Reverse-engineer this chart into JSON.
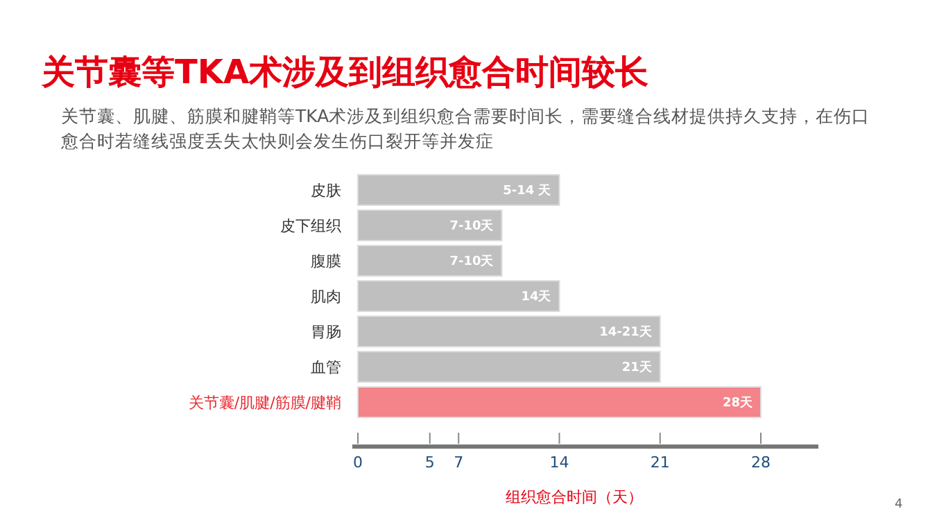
{
  "chart_data": {
    "type": "bar",
    "orientation": "horizontal",
    "title": "关节囊等TKA术涉及到组织愈合时间较长",
    "subtitle": "关节囊、肌腱、筋膜和腱鞘等TKA术涉及到组织愈合需要时间长，需要缝合线材提供持久支持，在伤口愈合时若缝线强度丢失太快则会发生伤口裂开等并发症",
    "categories": [
      "皮肤",
      "皮下组织",
      "腹膜",
      "肌肉",
      "胃肠",
      "血管",
      "关节囊/肌腱/筋膜/腱鞘"
    ],
    "values": [
      14,
      10,
      10,
      14,
      21,
      21,
      28
    ],
    "value_labels": [
      "5-14 天",
      "7-10天",
      "7-10天",
      "14天",
      "14-21天",
      "21天",
      "28天"
    ],
    "colors": [
      "#bfbfbf",
      "#bfbfbf",
      "#bfbfbf",
      "#bfbfbf",
      "#bfbfbf",
      "#bfbfbf",
      "#f4838a"
    ],
    "xlabel": "组织愈合时间（天）",
    "xlim": [
      0,
      32
    ],
    "xticks": [
      0,
      5,
      7,
      14,
      21,
      28
    ],
    "grid": false,
    "annotations": [
      "4"
    ]
  }
}
